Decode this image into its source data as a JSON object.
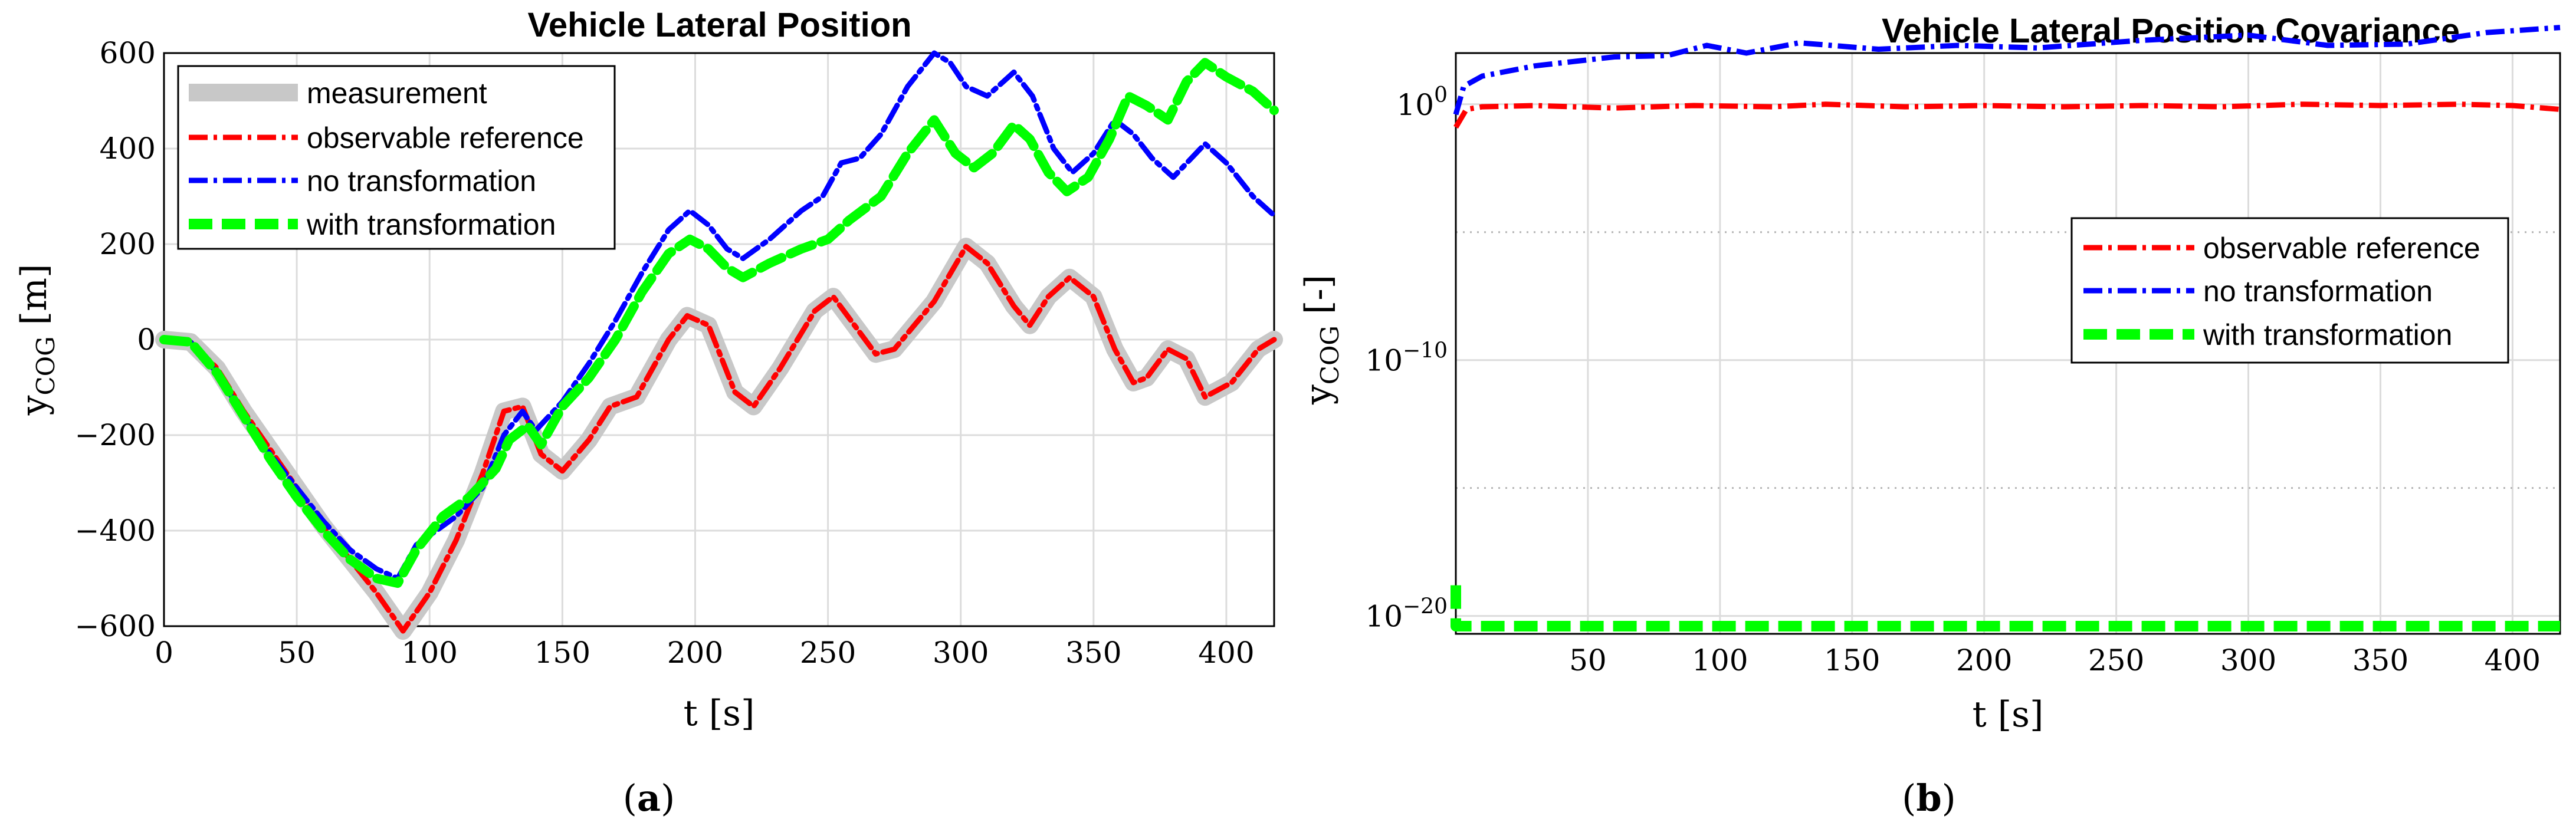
{
  "chart_data": [
    {
      "type": "line",
      "title": "Vehicle Lateral Position",
      "xlabel": "t [s]",
      "ylabel_main": "y",
      "ylabel_sub": "COG",
      "ylabel_unit": " [m]",
      "xlim": [
        0,
        418
      ],
      "ylim": [
        -600,
        600
      ],
      "grid": true,
      "legend_position": "top-left",
      "caption": "a",
      "xticks": [
        0,
        50,
        100,
        150,
        200,
        250,
        300,
        350,
        400
      ],
      "yticks": [
        600,
        400,
        200,
        0,
        -200,
        -400,
        -600
      ],
      "ytick_labels": [
        "600",
        "400",
        "200",
        "0",
        "−200",
        "−400",
        "−600"
      ],
      "series": [
        {
          "name": "measurement",
          "color": "#c8c8c8",
          "style": "solid",
          "points": [
            [
              0,
              0
            ],
            [
              10,
              -5
            ],
            [
              20,
              -60
            ],
            [
              30,
              -150
            ],
            [
              40,
              -230
            ],
            [
              50,
              -310
            ],
            [
              60,
              -390
            ],
            [
              70,
              -460
            ],
            [
              80,
              -530
            ],
            [
              90,
              -610
            ],
            [
              100,
              -530
            ],
            [
              110,
              -420
            ],
            [
              120,
              -280
            ],
            [
              128,
              -150
            ],
            [
              135,
              -140
            ],
            [
              142,
              -240
            ],
            [
              150,
              -275
            ],
            [
              160,
              -210
            ],
            [
              168,
              -140
            ],
            [
              178,
              -120
            ],
            [
              190,
              0
            ],
            [
              197,
              50
            ],
            [
              205,
              30
            ],
            [
              215,
              -110
            ],
            [
              222,
              -140
            ],
            [
              232,
              -60
            ],
            [
              245,
              60
            ],
            [
              252,
              90
            ],
            [
              260,
              30
            ],
            [
              268,
              -30
            ],
            [
              275,
              -20
            ],
            [
              290,
              80
            ],
            [
              302,
              195
            ],
            [
              310,
              160
            ],
            [
              320,
              70
            ],
            [
              326,
              30
            ],
            [
              333,
              90
            ],
            [
              341,
              130
            ],
            [
              350,
              90
            ],
            [
              358,
              -20
            ],
            [
              365,
              -90
            ],
            [
              370,
              -80
            ],
            [
              378,
              -20
            ],
            [
              385,
              -40
            ],
            [
              392,
              -120
            ],
            [
              402,
              -90
            ],
            [
              412,
              -20
            ],
            [
              418,
              0
            ]
          ]
        },
        {
          "name": "observable reference",
          "color": "#ff0000",
          "style": "dashdot",
          "points": [
            [
              0,
              0
            ],
            [
              10,
              -5
            ],
            [
              20,
              -60
            ],
            [
              30,
              -150
            ],
            [
              40,
              -230
            ],
            [
              50,
              -310
            ],
            [
              60,
              -390
            ],
            [
              70,
              -460
            ],
            [
              80,
              -530
            ],
            [
              90,
              -610
            ],
            [
              100,
              -530
            ],
            [
              110,
              -420
            ],
            [
              120,
              -280
            ],
            [
              128,
              -150
            ],
            [
              135,
              -140
            ],
            [
              142,
              -240
            ],
            [
              150,
              -275
            ],
            [
              160,
              -210
            ],
            [
              168,
              -140
            ],
            [
              178,
              -120
            ],
            [
              190,
              0
            ],
            [
              197,
              50
            ],
            [
              205,
              30
            ],
            [
              215,
              -110
            ],
            [
              222,
              -140
            ],
            [
              232,
              -60
            ],
            [
              245,
              60
            ],
            [
              252,
              90
            ],
            [
              260,
              30
            ],
            [
              268,
              -30
            ],
            [
              275,
              -20
            ],
            [
              290,
              80
            ],
            [
              302,
              195
            ],
            [
              310,
              160
            ],
            [
              320,
              70
            ],
            [
              326,
              30
            ],
            [
              333,
              90
            ],
            [
              341,
              130
            ],
            [
              350,
              90
            ],
            [
              358,
              -20
            ],
            [
              365,
              -90
            ],
            [
              370,
              -80
            ],
            [
              378,
              -20
            ],
            [
              385,
              -40
            ],
            [
              392,
              -120
            ],
            [
              402,
              -90
            ],
            [
              412,
              -20
            ],
            [
              418,
              0
            ]
          ]
        },
        {
          "name": "no transformation",
          "color": "#0000ff",
          "style": "dashdot",
          "points": [
            [
              0,
              0
            ],
            [
              10,
              -5
            ],
            [
              20,
              -70
            ],
            [
              30,
              -160
            ],
            [
              40,
              -240
            ],
            [
              50,
              -310
            ],
            [
              60,
              -380
            ],
            [
              70,
              -440
            ],
            [
              80,
              -480
            ],
            [
              88,
              -500
            ],
            [
              95,
              -430
            ],
            [
              110,
              -370
            ],
            [
              120,
              -310
            ],
            [
              128,
              -200
            ],
            [
              135,
              -150
            ],
            [
              140,
              -190
            ],
            [
              150,
              -130
            ],
            [
              160,
              -50
            ],
            [
              170,
              40
            ],
            [
              180,
              140
            ],
            [
              190,
              230
            ],
            [
              198,
              270
            ],
            [
              205,
              240
            ],
            [
              212,
              190
            ],
            [
              218,
              170
            ],
            [
              228,
              210
            ],
            [
              240,
              270
            ],
            [
              248,
              300
            ],
            [
              255,
              370
            ],
            [
              262,
              380
            ],
            [
              270,
              430
            ],
            [
              280,
              530
            ],
            [
              290,
              600
            ],
            [
              296,
              580
            ],
            [
              302,
              530
            ],
            [
              310,
              510
            ],
            [
              320,
              560
            ],
            [
              327,
              510
            ],
            [
              335,
              400
            ],
            [
              342,
              350
            ],
            [
              350,
              390
            ],
            [
              358,
              460
            ],
            [
              365,
              430
            ],
            [
              372,
              380
            ],
            [
              380,
              340
            ],
            [
              392,
              410
            ],
            [
              400,
              370
            ],
            [
              410,
              300
            ],
            [
              418,
              260
            ]
          ]
        },
        {
          "name": "with transformation",
          "color": "#00ff00",
          "style": "dashed",
          "points": [
            [
              0,
              0
            ],
            [
              10,
              -5
            ],
            [
              20,
              -70
            ],
            [
              30,
              -160
            ],
            [
              40,
              -250
            ],
            [
              50,
              -330
            ],
            [
              60,
              -400
            ],
            [
              70,
              -460
            ],
            [
              80,
              -500
            ],
            [
              88,
              -510
            ],
            [
              95,
              -440
            ],
            [
              105,
              -370
            ],
            [
              115,
              -330
            ],
            [
              125,
              -270
            ],
            [
              130,
              -210
            ],
            [
              137,
              -180
            ],
            [
              142,
              -220
            ],
            [
              150,
              -140
            ],
            [
              160,
              -80
            ],
            [
              170,
              0
            ],
            [
              180,
              100
            ],
            [
              190,
              180
            ],
            [
              198,
              210
            ],
            [
              205,
              190
            ],
            [
              212,
              150
            ],
            [
              218,
              130
            ],
            [
              228,
              160
            ],
            [
              240,
              190
            ],
            [
              250,
              210
            ],
            [
              258,
              250
            ],
            [
              270,
              300
            ],
            [
              280,
              390
            ],
            [
              290,
              460
            ],
            [
              298,
              390
            ],
            [
              305,
              360
            ],
            [
              312,
              390
            ],
            [
              320,
              450
            ],
            [
              326,
              420
            ],
            [
              333,
              350
            ],
            [
              340,
              310
            ],
            [
              348,
              340
            ],
            [
              356,
              420
            ],
            [
              363,
              510
            ],
            [
              370,
              490
            ],
            [
              378,
              460
            ],
            [
              385,
              540
            ],
            [
              392,
              580
            ],
            [
              400,
              550
            ],
            [
              410,
              520
            ],
            [
              418,
              480
            ]
          ]
        }
      ]
    },
    {
      "type": "line",
      "title": "Vehicle Lateral Position Covariance",
      "xlabel": "t [s]",
      "ylabel_main": "y",
      "ylabel_sub": "COG",
      "ylabel_unit": " [-]",
      "xlim": [
        0,
        418
      ],
      "ylim_log10": [
        -20.7,
        2
      ],
      "yscale": "log",
      "grid": true,
      "legend_position": "center-right",
      "caption": "b",
      "xticks": [
        50,
        100,
        150,
        200,
        250,
        300,
        350,
        400
      ],
      "yticks_log10": [
        0,
        -10,
        -20
      ],
      "minor_yticks_log10": [
        -5,
        -15
      ],
      "ytick_base": "10",
      "ytick_exponents": [
        "0",
        "−10",
        "−20"
      ],
      "series": [
        {
          "name": "observable reference",
          "color": "#ff0000",
          "style": "dashdot",
          "points_log10": [
            [
              0,
              -0.9
            ],
            [
              4,
              -0.2
            ],
            [
              10,
              -0.1
            ],
            [
              30,
              -0.05
            ],
            [
              60,
              -0.15
            ],
            [
              90,
              -0.05
            ],
            [
              120,
              -0.1
            ],
            [
              140,
              0.0
            ],
            [
              170,
              -0.1
            ],
            [
              200,
              -0.05
            ],
            [
              230,
              -0.1
            ],
            [
              260,
              -0.05
            ],
            [
              290,
              -0.1
            ],
            [
              320,
              0.0
            ],
            [
              350,
              -0.05
            ],
            [
              380,
              0.0
            ],
            [
              400,
              -0.05
            ],
            [
              418,
              -0.2
            ]
          ]
        },
        {
          "name": "no transformation",
          "color": "#0000ff",
          "style": "dashdot",
          "points_log10": [
            [
              0,
              -0.4
            ],
            [
              3,
              0.7
            ],
            [
              10,
              1.1
            ],
            [
              30,
              1.5
            ],
            [
              60,
              1.85
            ],
            [
              80,
              1.9
            ],
            [
              95,
              2.3
            ],
            [
              110,
              2.0
            ],
            [
              130,
              2.4
            ],
            [
              160,
              2.15
            ],
            [
              190,
              2.3
            ],
            [
              220,
              2.2
            ],
            [
              260,
              2.5
            ],
            [
              300,
              2.7
            ],
            [
              330,
              2.3
            ],
            [
              360,
              2.35
            ],
            [
              390,
              2.8
            ],
            [
              418,
              3.0
            ]
          ]
        },
        {
          "name": "with transformation",
          "color": "#00ff00",
          "style": "dashed",
          "points_log10": [
            [
              0,
              -18.8
            ],
            [
              0,
              -20.4
            ],
            [
              10,
              -20.4
            ],
            [
              100,
              -20.4
            ],
            [
              200,
              -20.4
            ],
            [
              300,
              -20.4
            ],
            [
              418,
              -20.4
            ]
          ]
        }
      ]
    }
  ]
}
